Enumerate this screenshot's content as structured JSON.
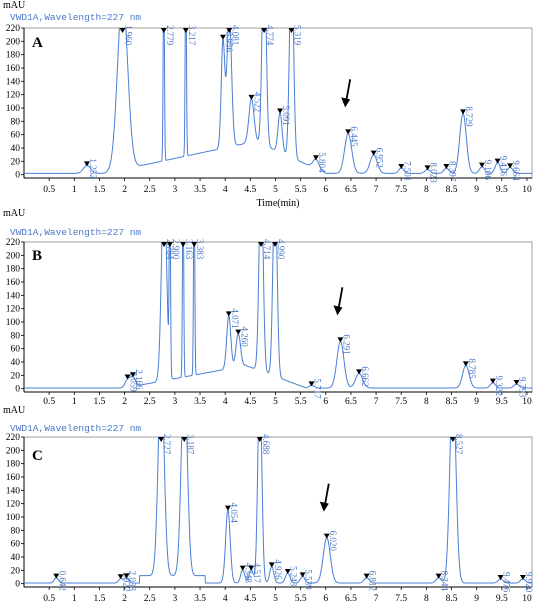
{
  "colors": {
    "trace": "#4a7fd6",
    "axis": "#000000",
    "frame": "#888888",
    "arrow": "#000000",
    "label": "#4a78c8"
  },
  "chart_data": [
    {
      "type": "line",
      "panel": "A",
      "title": "VWD1A,Wavelength=227 nm",
      "ylabel": "mAU",
      "xlabel": "Time(min)",
      "xlim": [
        0,
        10.1
      ],
      "ylim": [
        -5,
        220
      ],
      "xticks": [
        "0.5",
        "1",
        "1.5",
        "2",
        "2.5",
        "3",
        "3.5",
        "4",
        "4.5",
        "5",
        "5.5",
        "6",
        "6.5",
        "7",
        "7.5",
        "8",
        "8.5",
        "9",
        "9.5",
        "10"
      ],
      "yticks": [
        "0",
        "20",
        "40",
        "60",
        "80",
        "100",
        "120",
        "140",
        "160",
        "180",
        "200",
        "220"
      ],
      "arrow_at": 6.445,
      "peaks": [
        {
          "label": "1.252",
          "t": 1.252,
          "h": 12,
          "w": 0.07
        },
        {
          "label": "1.960",
          "t": 1.96,
          "h": 260,
          "w": 0.1
        },
        {
          "label": "2.779",
          "t": 2.779,
          "h": 300,
          "w": 0.012
        },
        {
          "label": "3.217",
          "t": 3.217,
          "h": 300,
          "w": 0.012
        },
        {
          "label": "3.956",
          "t": 3.956,
          "h": 160,
          "w": 0.035
        },
        {
          "label": "4.081",
          "t": 4.081,
          "h": 200,
          "w": 0.045
        },
        {
          "label": "4.522",
          "t": 4.522,
          "h": 65,
          "w": 0.05
        },
        {
          "label": "4.774",
          "t": 4.774,
          "h": 300,
          "w": 0.04
        },
        {
          "label": "5.091",
          "t": 5.091,
          "h": 60,
          "w": 0.04
        },
        {
          "label": "5.319",
          "t": 5.319,
          "h": 300,
          "w": 0.04
        },
        {
          "label": "5.804",
          "t": 5.804,
          "h": 14,
          "w": 0.06
        },
        {
          "label": "6.445",
          "t": 6.445,
          "h": 60,
          "w": 0.07
        },
        {
          "label": "6.952",
          "t": 6.952,
          "h": 28,
          "w": 0.07
        },
        {
          "label": "7.501",
          "t": 7.501,
          "h": 8,
          "w": 0.05
        },
        {
          "label": "8.023",
          "t": 8.023,
          "h": 6,
          "w": 0.05
        },
        {
          "label": "8.397",
          "t": 8.397,
          "h": 8,
          "w": 0.05
        },
        {
          "label": "8.729",
          "t": 8.729,
          "h": 90,
          "w": 0.065
        },
        {
          "label": "9.106",
          "t": 9.106,
          "h": 10,
          "w": 0.05
        },
        {
          "label": "9.416",
          "t": 9.416,
          "h": 16,
          "w": 0.05
        },
        {
          "label": "9.664",
          "t": 9.664,
          "h": 9,
          "w": 0.05
        }
      ]
    },
    {
      "type": "line",
      "panel": "B",
      "title": "VWD1A,Wavelength=227 nm",
      "ylabel": "mAU",
      "xlabel": "",
      "xlim": [
        0,
        10.1
      ],
      "ylim": [
        -5,
        220
      ],
      "xticks": [
        "0.5",
        "1",
        "1.5",
        "2",
        "2.5",
        "3",
        "3.5",
        "4",
        "4.5",
        "5",
        "5.5",
        "6",
        "6.5",
        "7",
        "7.5",
        "8",
        "8.5",
        "9",
        "9.5",
        "10"
      ],
      "yticks": [
        "0",
        "20",
        "40",
        "60",
        "80",
        "100",
        "120",
        "140",
        "160",
        "180",
        "200",
        "220"
      ],
      "arrow_at": 6.291,
      "peaks": [
        {
          "label": "2.059",
          "t": 2.059,
          "h": 12,
          "w": 0.05
        },
        {
          "label": "2.166",
          "t": 2.166,
          "h": 14,
          "w": 0.05
        },
        {
          "label": "2.784",
          "t": 2.784,
          "h": 300,
          "w": 0.05
        },
        {
          "label": "2.900",
          "t": 2.9,
          "h": 300,
          "w": 0.012
        },
        {
          "label": "3.163",
          "t": 3.163,
          "h": 300,
          "w": 0.012
        },
        {
          "label": "3.383",
          "t": 3.383,
          "h": 300,
          "w": 0.012
        },
        {
          "label": "4.071",
          "t": 4.071,
          "h": 80,
          "w": 0.04
        },
        {
          "label": "4.260",
          "t": 4.26,
          "h": 50,
          "w": 0.045
        },
        {
          "label": "4.714",
          "t": 4.714,
          "h": 300,
          "w": 0.04
        },
        {
          "label": "4.990",
          "t": 4.99,
          "h": 300,
          "w": 0.04
        },
        {
          "label": "5.717",
          "t": 5.717,
          "h": 4,
          "w": 0.05
        },
        {
          "label": "6.291",
          "t": 6.291,
          "h": 70,
          "w": 0.07
        },
        {
          "label": "6.662",
          "t": 6.662,
          "h": 22,
          "w": 0.07
        },
        {
          "label": "8.785",
          "t": 8.785,
          "h": 34,
          "w": 0.065
        },
        {
          "label": "9.322",
          "t": 9.322,
          "h": 8,
          "w": 0.05
        },
        {
          "label": "9.793",
          "t": 9.793,
          "h": 6,
          "w": 0.05
        }
      ]
    },
    {
      "type": "line",
      "panel": "C",
      "title": "VWD1A,Wavelength=227 nm",
      "ylabel": "mAU",
      "xlabel": "",
      "xlim": [
        0,
        10.1
      ],
      "ylim": [
        -5,
        220
      ],
      "xticks": [
        "0.5",
        "1",
        "1.5",
        "2",
        "2.5",
        "3",
        "3.5",
        "4",
        "4.5",
        "5",
        "5.5",
        "6",
        "6.5",
        "7",
        "7.5",
        "8",
        "8.5",
        "9",
        "9.5",
        "10"
      ],
      "yticks": [
        "0",
        "20",
        "40",
        "60",
        "80",
        "100",
        "120",
        "140",
        "160",
        "180",
        "200",
        "220"
      ],
      "arrow_at": 6.02,
      "peaks": [
        {
          "label": "0.642",
          "t": 0.642,
          "h": 8,
          "w": 0.04
        },
        {
          "label": "1.922",
          "t": 1.922,
          "h": 7,
          "w": 0.04
        },
        {
          "label": "2.038",
          "t": 2.038,
          "h": 8,
          "w": 0.04
        },
        {
          "label": "2.727",
          "t": 2.727,
          "h": 300,
          "w": 0.06
        },
        {
          "label": "3.187",
          "t": 3.187,
          "h": 300,
          "w": 0.06
        },
        {
          "label": "4.054",
          "t": 4.054,
          "h": 110,
          "w": 0.045
        },
        {
          "label": "4.348",
          "t": 4.348,
          "h": 20,
          "w": 0.04
        },
        {
          "label": "4.517",
          "t": 4.517,
          "h": 20,
          "w": 0.04
        },
        {
          "label": "4.688",
          "t": 4.688,
          "h": 300,
          "w": 0.04
        },
        {
          "label": "4.926",
          "t": 4.926,
          "h": 25,
          "w": 0.04
        },
        {
          "label": "5.243",
          "t": 5.243,
          "h": 15,
          "w": 0.045
        },
        {
          "label": "5.539",
          "t": 5.539,
          "h": 10,
          "w": 0.045
        },
        {
          "label": "6.020",
          "t": 6.02,
          "h": 68,
          "w": 0.07
        },
        {
          "label": "6.812",
          "t": 6.812,
          "h": 8,
          "w": 0.05
        },
        {
          "label": "8.244",
          "t": 8.244,
          "h": 8,
          "w": 0.05
        },
        {
          "label": "8.527",
          "t": 8.527,
          "h": 300,
          "w": 0.06
        },
        {
          "label": "9.476",
          "t": 9.476,
          "h": 6,
          "w": 0.05
        },
        {
          "label": "9.920",
          "t": 9.92,
          "h": 6,
          "w": 0.05
        }
      ]
    }
  ]
}
